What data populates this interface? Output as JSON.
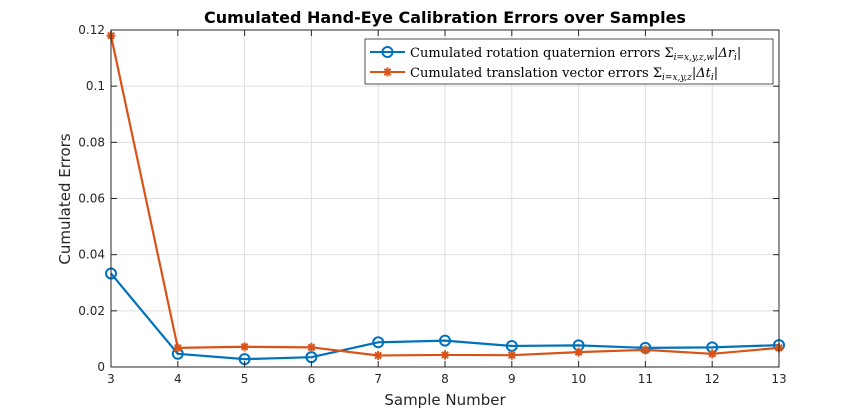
{
  "chart_data": {
    "type": "line",
    "title": "Cumulated Hand-Eye Calibration Errors over Samples",
    "xlabel": "Sample Number",
    "ylabel": "Cumulated Errors",
    "xlim": [
      3,
      13
    ],
    "ylim": [
      0,
      0.12
    ],
    "grid": true,
    "legend_position": "top-right",
    "x": [
      3,
      4,
      5,
      6,
      7,
      8,
      9,
      10,
      11,
      12,
      13
    ],
    "x_tick_labels": [
      "3",
      "4",
      "5",
      "6",
      "7",
      "8",
      "9",
      "10",
      "11",
      "12",
      "13"
    ],
    "y_tick_values": [
      0,
      0.02,
      0.04,
      0.06,
      0.08,
      0.1,
      0.12
    ],
    "y_tick_labels": [
      "0",
      "0.02",
      "0.04",
      "0.06",
      "0.08",
      "0.1",
      "0.12"
    ],
    "series": [
      {
        "name": "Cumulated rotation quaternion errors Σi=x,y,z,w|Δri|",
        "legend_text": "Cumulated rotation quaternion errors Σ",
        "legend_sub": "i=x,y,z,w",
        "legend_tail": "|Δr",
        "legend_tail_sub": "i",
        "legend_end": "|",
        "color": "#0072BD",
        "marker": "circle",
        "values": [
          0.0333,
          0.0047,
          0.0028,
          0.0035,
          0.0088,
          0.0094,
          0.0075,
          0.0077,
          0.0068,
          0.007,
          0.0078
        ]
      },
      {
        "name": "Cumulated translation vector errors Σi=x,y,z|Δti|",
        "legend_text": "Cumulated translation vector errors Σ",
        "legend_sub": "i=x,y,z",
        "legend_tail": "|Δt",
        "legend_tail_sub": "i",
        "legend_end": "|",
        "color": "#D95319",
        "marker": "star",
        "values": [
          0.118,
          0.0068,
          0.0072,
          0.007,
          0.0041,
          0.0043,
          0.0042,
          0.0053,
          0.0061,
          0.0047,
          0.0068
        ]
      }
    ]
  }
}
